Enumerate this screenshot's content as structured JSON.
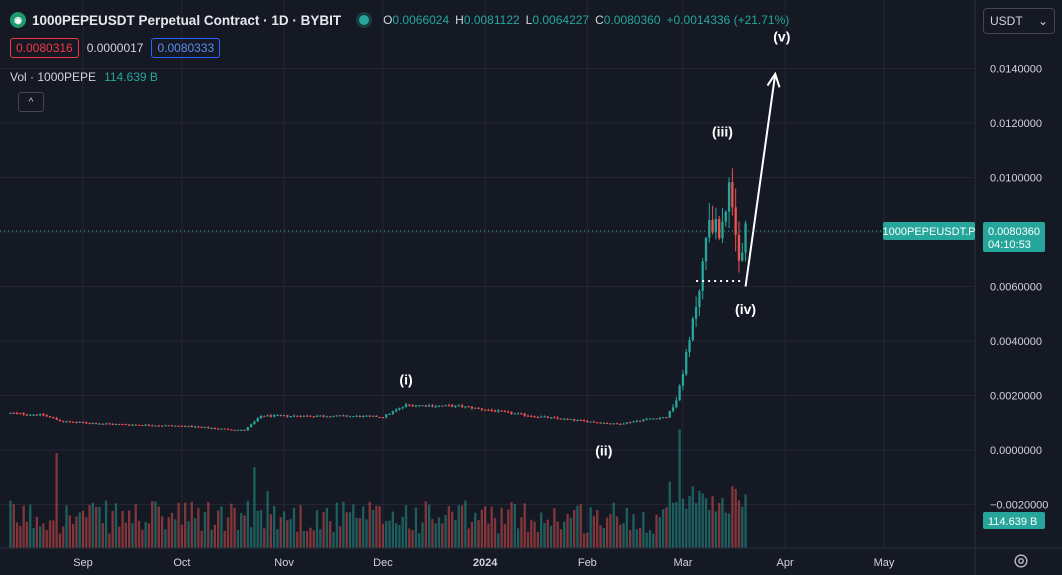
{
  "header": {
    "title": "1000PEPEUSDT Perpetual Contract · 1D · BYBIT",
    "ohlc": {
      "o_label": "O",
      "o_value": "0.0066024",
      "h_label": "H",
      "h_value": "0.0081122",
      "l_label": "L",
      "l_value": "0.0064227",
      "c_label": "C",
      "c_value": "0.0080360",
      "change": "+0.0014336 (+21.71%)"
    },
    "sell_price": "0.0080316",
    "spread": "0.0000017",
    "buy_price": "0.0080333",
    "volume_label": "Vol · 1000PEPE",
    "volume_value": "114.639 B",
    "collapse_glyph": "^"
  },
  "currency": {
    "selected": "USDT",
    "chevron": "⌄"
  },
  "chart_data": {
    "type": "candlestick",
    "symbol": "1000PEPEUSDT.P",
    "interval": "1D",
    "exchange": "BYBIT",
    "last_price": "0.0080360",
    "countdown": "04:10:53",
    "volume_last": "114.639 B",
    "y_ticks": [
      "0.0140000",
      "0.0120000",
      "0.0100000",
      "0.0080000",
      "0.0060000",
      "0.0040000",
      "0.0020000",
      "0.0000000",
      "−0.0020000"
    ],
    "y_tick_values": [
      0.014,
      0.012,
      0.01,
      0.008,
      0.006,
      0.004,
      0.002,
      0.0,
      -0.002
    ],
    "x_ticks": [
      "Sep",
      "Oct",
      "Nov",
      "Dec",
      "2024",
      "Feb",
      "Mar",
      "Apr",
      "May"
    ],
    "x_tick_dates": [
      "2023-09-01",
      "2023-10-01",
      "2023-11-01",
      "2023-12-01",
      "2024-01-01",
      "2024-02-01",
      "2024-03-01",
      "2024-04-01",
      "2024-05-01"
    ],
    "price_start_date": "2023-08-10",
    "price_end_date": "2024-03-20",
    "price_path": [
      [
        "2023-08-10",
        0.00135
      ],
      [
        "2023-08-20",
        0.00128
      ],
      [
        "2023-08-26",
        0.00104
      ],
      [
        "2023-09-10",
        0.00095
      ],
      [
        "2023-10-01",
        0.00088
      ],
      [
        "2023-10-20",
        0.00072
      ],
      [
        "2023-10-25",
        0.00125
      ],
      [
        "2023-11-15",
        0.00125
      ],
      [
        "2023-12-01",
        0.00122
      ],
      [
        "2023-12-08",
        0.00165
      ],
      [
        "2023-12-25",
        0.0016
      ],
      [
        "2024-01-15",
        0.00125
      ],
      [
        "2024-02-01",
        0.00105
      ],
      [
        "2024-02-10",
        0.00095
      ],
      [
        "2024-02-20",
        0.00115
      ],
      [
        "2024-02-25",
        0.0012
      ],
      [
        "2024-02-28",
        0.0018
      ],
      [
        "2024-03-03",
        0.004
      ],
      [
        "2024-03-06",
        0.006
      ],
      [
        "2024-03-09",
        0.0085
      ],
      [
        "2024-03-12",
        0.008
      ],
      [
        "2024-03-15",
        0.0095
      ],
      [
        "2024-03-18",
        0.0068
      ],
      [
        "2024-03-20",
        0.008
      ]
    ],
    "volume_bars": "volume histogram at bottom, peaks near late Aug, late Oct, late Feb/early Mar",
    "wave_labels": [
      {
        "text": "(i)",
        "date": "2023-12-08",
        "price": 0.0024
      },
      {
        "text": "(ii)",
        "date": "2024-02-06",
        "price": -0.0002
      },
      {
        "text": "(iii)",
        "date": "2024-03-13",
        "price": 0.0115
      },
      {
        "text": "(iv)",
        "date": "2024-03-20",
        "price": 0.005
      },
      {
        "text": "(v)",
        "date": "2024-03-31",
        "price": 0.015
      }
    ],
    "arrow": {
      "from": [
        "2024-03-20",
        0.006
      ],
      "to": [
        "2024-03-29",
        0.0138
      ]
    },
    "support_line": {
      "from": [
        "2024-03-05",
        0.0062
      ],
      "to": [
        "2024-03-19",
        0.0062
      ]
    },
    "colors": {
      "up": "#26a69a",
      "down": "#ef5350",
      "background": "#151924",
      "grid": "#242733",
      "price_line": "#26a69a",
      "text": "#d1d4dc"
    }
  }
}
